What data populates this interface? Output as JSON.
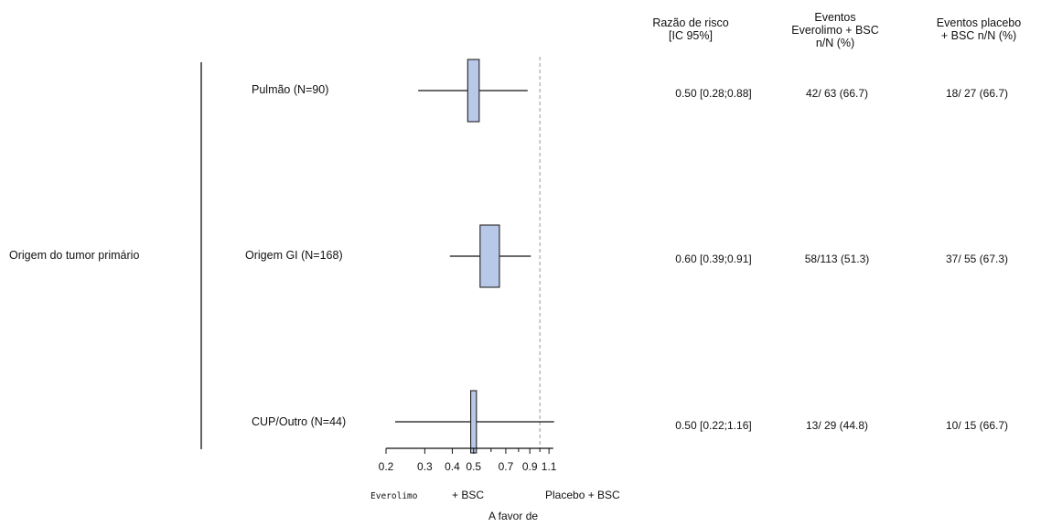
{
  "chart_data": {
    "type": "forest",
    "x_scale": "log",
    "xlim": [
      0.2,
      1.15
    ],
    "x_ticks": [
      0.2,
      0.3,
      0.4,
      0.5,
      0.7,
      0.9,
      1.1
    ],
    "minor_ticks": [
      0.6,
      0.8,
      1.0
    ],
    "reference_line": 1.0,
    "group_label": "Origem do tumor primário",
    "rows": [
      {
        "label": "Pulmão (N=90)",
        "hr": 0.5,
        "ci": [
          0.28,
          0.88
        ],
        "box_lo": 0.47,
        "box_hi": 0.53,
        "hr_text": "0.50 [0.28;0.88]",
        "evero_text": "42/ 63 (66.7)",
        "placebo_text": "18/ 27 (66.7)"
      },
      {
        "label": "Origem GI (N=168)",
        "hr": 0.6,
        "ci": [
          0.39,
          0.91
        ],
        "box_lo": 0.535,
        "box_hi": 0.655,
        "hr_text": "0.60 [0.39;0.91]",
        "evero_text": "58/113 (51.3)",
        "placebo_text": "37/ 55 (67.3)"
      },
      {
        "label": "CUP/Outro (N=44)",
        "hr": 0.5,
        "ci": [
          0.22,
          1.16
        ],
        "box_lo": 0.485,
        "box_hi": 0.515,
        "hr_text": "0.50 [0.22;1.16]",
        "evero_text": "13/ 29 (44.8)",
        "placebo_text": "10/ 15 (66.7)"
      }
    ],
    "columns": {
      "hr": "Razão de risco\n[IC 95%]",
      "evero": "Eventos\nEverolimo + BSC\nn/N (%)",
      "placebo": "Eventos placebo\n+ BSC n/N (%)"
    },
    "favor_left_a": "Everolimo",
    "favor_left_b": "+ BSC",
    "favor_right": "Placebo + BSC",
    "xlabel": "A favor de",
    "box_color": "#b8c8e8"
  }
}
